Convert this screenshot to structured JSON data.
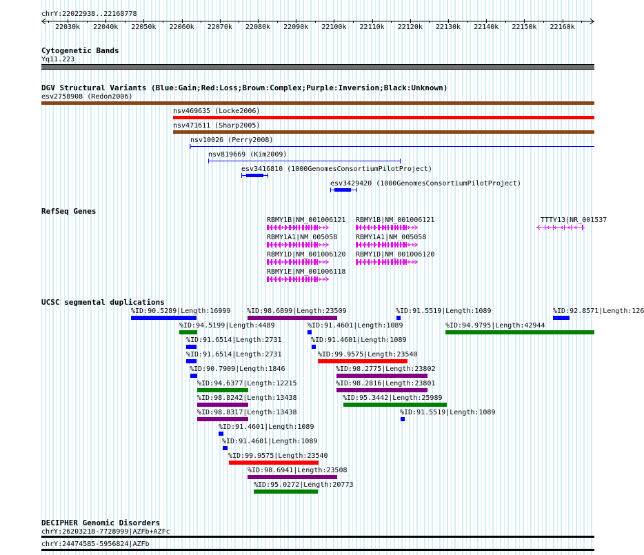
{
  "coord_label": "chrY:22022938..22168778",
  "ruler": {
    "ticks": [
      "22030k",
      "22040k",
      "22050k",
      "22060k",
      "22070k",
      "22080k",
      "22090k",
      "22100k",
      "22110k",
      "22120k",
      "22130k",
      "22140k",
      "22150k",
      "22160k"
    ]
  },
  "tracks": {
    "cytoband": {
      "title": "Cytogenetic Bands",
      "label": "Yq11.223"
    },
    "dgv": {
      "title": "DGV Structural Variants (Blue:Gain;Red:Loss;Brown:Complex;Purple:Inversion;Black:Unknown)",
      "features": [
        {
          "label": "esv2758908 (Redon2006)",
          "color": "#8b4513"
        },
        {
          "label": "nsv469635 (Locke2006)",
          "color": "#ff0000"
        },
        {
          "label": "nsv471611 (Sharp2005)",
          "color": "#8b4513"
        },
        {
          "label": "nsv10026 (Perry2008)",
          "color": "#0000ff"
        },
        {
          "label": "nsv819669 (Kim2009)",
          "color": "#0000ff"
        },
        {
          "label": "esv3416810 (1000GenomesConsortiumPilotProject)",
          "color": "#0000ff"
        },
        {
          "label": "esv3429420 (1000GenomesConsortiumPilotProject)",
          "color": "#0000ff"
        }
      ]
    },
    "refseq": {
      "title": "RefSeq Genes",
      "genes": [
        {
          "label": "RBMY1B|NM_001006121",
          "color": "#e010e0"
        },
        {
          "label": "RBMY1A1|NM_005058",
          "color": "#e010e0"
        },
        {
          "label": "RBMY1D|NM_001006120",
          "color": "#e010e0"
        },
        {
          "label": "RBMY1E|NM_001006118",
          "color": "#e010e0"
        },
        {
          "label": "RBMY1B|NM_001006121",
          "color": "#e010e0"
        },
        {
          "label": "RBMY1A1|NM_005058",
          "color": "#e010e0"
        },
        {
          "label": "RBMY1D|NM_001006120",
          "color": "#e010e0"
        },
        {
          "label": "TTTY13|NR_001537",
          "color": "#e010e0"
        }
      ]
    },
    "segdup": {
      "title": "UCSC segmental duplications",
      "features": [
        {
          "label": "%ID:90.5289|Length:16999",
          "color": "#0000ff"
        },
        {
          "label": "%ID:98.6899|Length:23509",
          "color": "#800080"
        },
        {
          "label": "%ID:91.5519|Length:1089",
          "color": "#0000ff"
        },
        {
          "label": "%ID:92.8571|Length:126",
          "color": "#0000ff"
        },
        {
          "label": "%ID:94.5199|Length:4489",
          "color": "#008000"
        },
        {
          "label": "%ID:91.4601|Length:1089",
          "color": "#0000ff"
        },
        {
          "label": "%ID:94.9795|Length:42944",
          "color": "#008000"
        },
        {
          "label": "%ID:91.6514|Length:2731",
          "color": "#0000ff"
        },
        {
          "label": "%ID:91.4601|Length:1089",
          "color": "#0000ff"
        },
        {
          "label": "%ID:91.6514|Length:2731",
          "color": "#0000ff"
        },
        {
          "label": "%ID:99.9575|Length:23540",
          "color": "#ff0000"
        },
        {
          "label": "%ID:90.7909|Length:1846",
          "color": "#0000ff"
        },
        {
          "label": "%ID:98.2775|Length:23802",
          "color": "#800080"
        },
        {
          "label": "%ID:94.6377|Length:12215",
          "color": "#008000"
        },
        {
          "label": "%ID:98.2816|Length:23801",
          "color": "#800080"
        },
        {
          "label": "%ID:98.8242|Length:13438",
          "color": "#800080"
        },
        {
          "label": "%ID:95.3442|Length:25989",
          "color": "#008000"
        },
        {
          "label": "%ID:98.8317|Length:13438",
          "color": "#800080"
        },
        {
          "label": "%ID:91.5519|Length:1089",
          "color": "#0000ff"
        },
        {
          "label": "%ID:91.4601|Length:1089",
          "color": "#0000ff"
        },
        {
          "label": "%ID:91.4601|Length:1089",
          "color": "#0000ff"
        },
        {
          "label": "%ID:99.9575|Length:23540",
          "color": "#ff0000"
        },
        {
          "label": "%ID:98.6941|Length:23508",
          "color": "#800080"
        },
        {
          "label": "%ID:95.0272|Length:20773",
          "color": "#008000"
        }
      ]
    },
    "decipher": {
      "title": "DECIPHER Genomic Disorders",
      "features": [
        {
          "label": "chrY:26203218-7728999|AZFb+AZFc",
          "color": "#000000"
        },
        {
          "label": "chrY:24474585-5956824|AZFb",
          "color": "#000000"
        }
      ]
    }
  }
}
